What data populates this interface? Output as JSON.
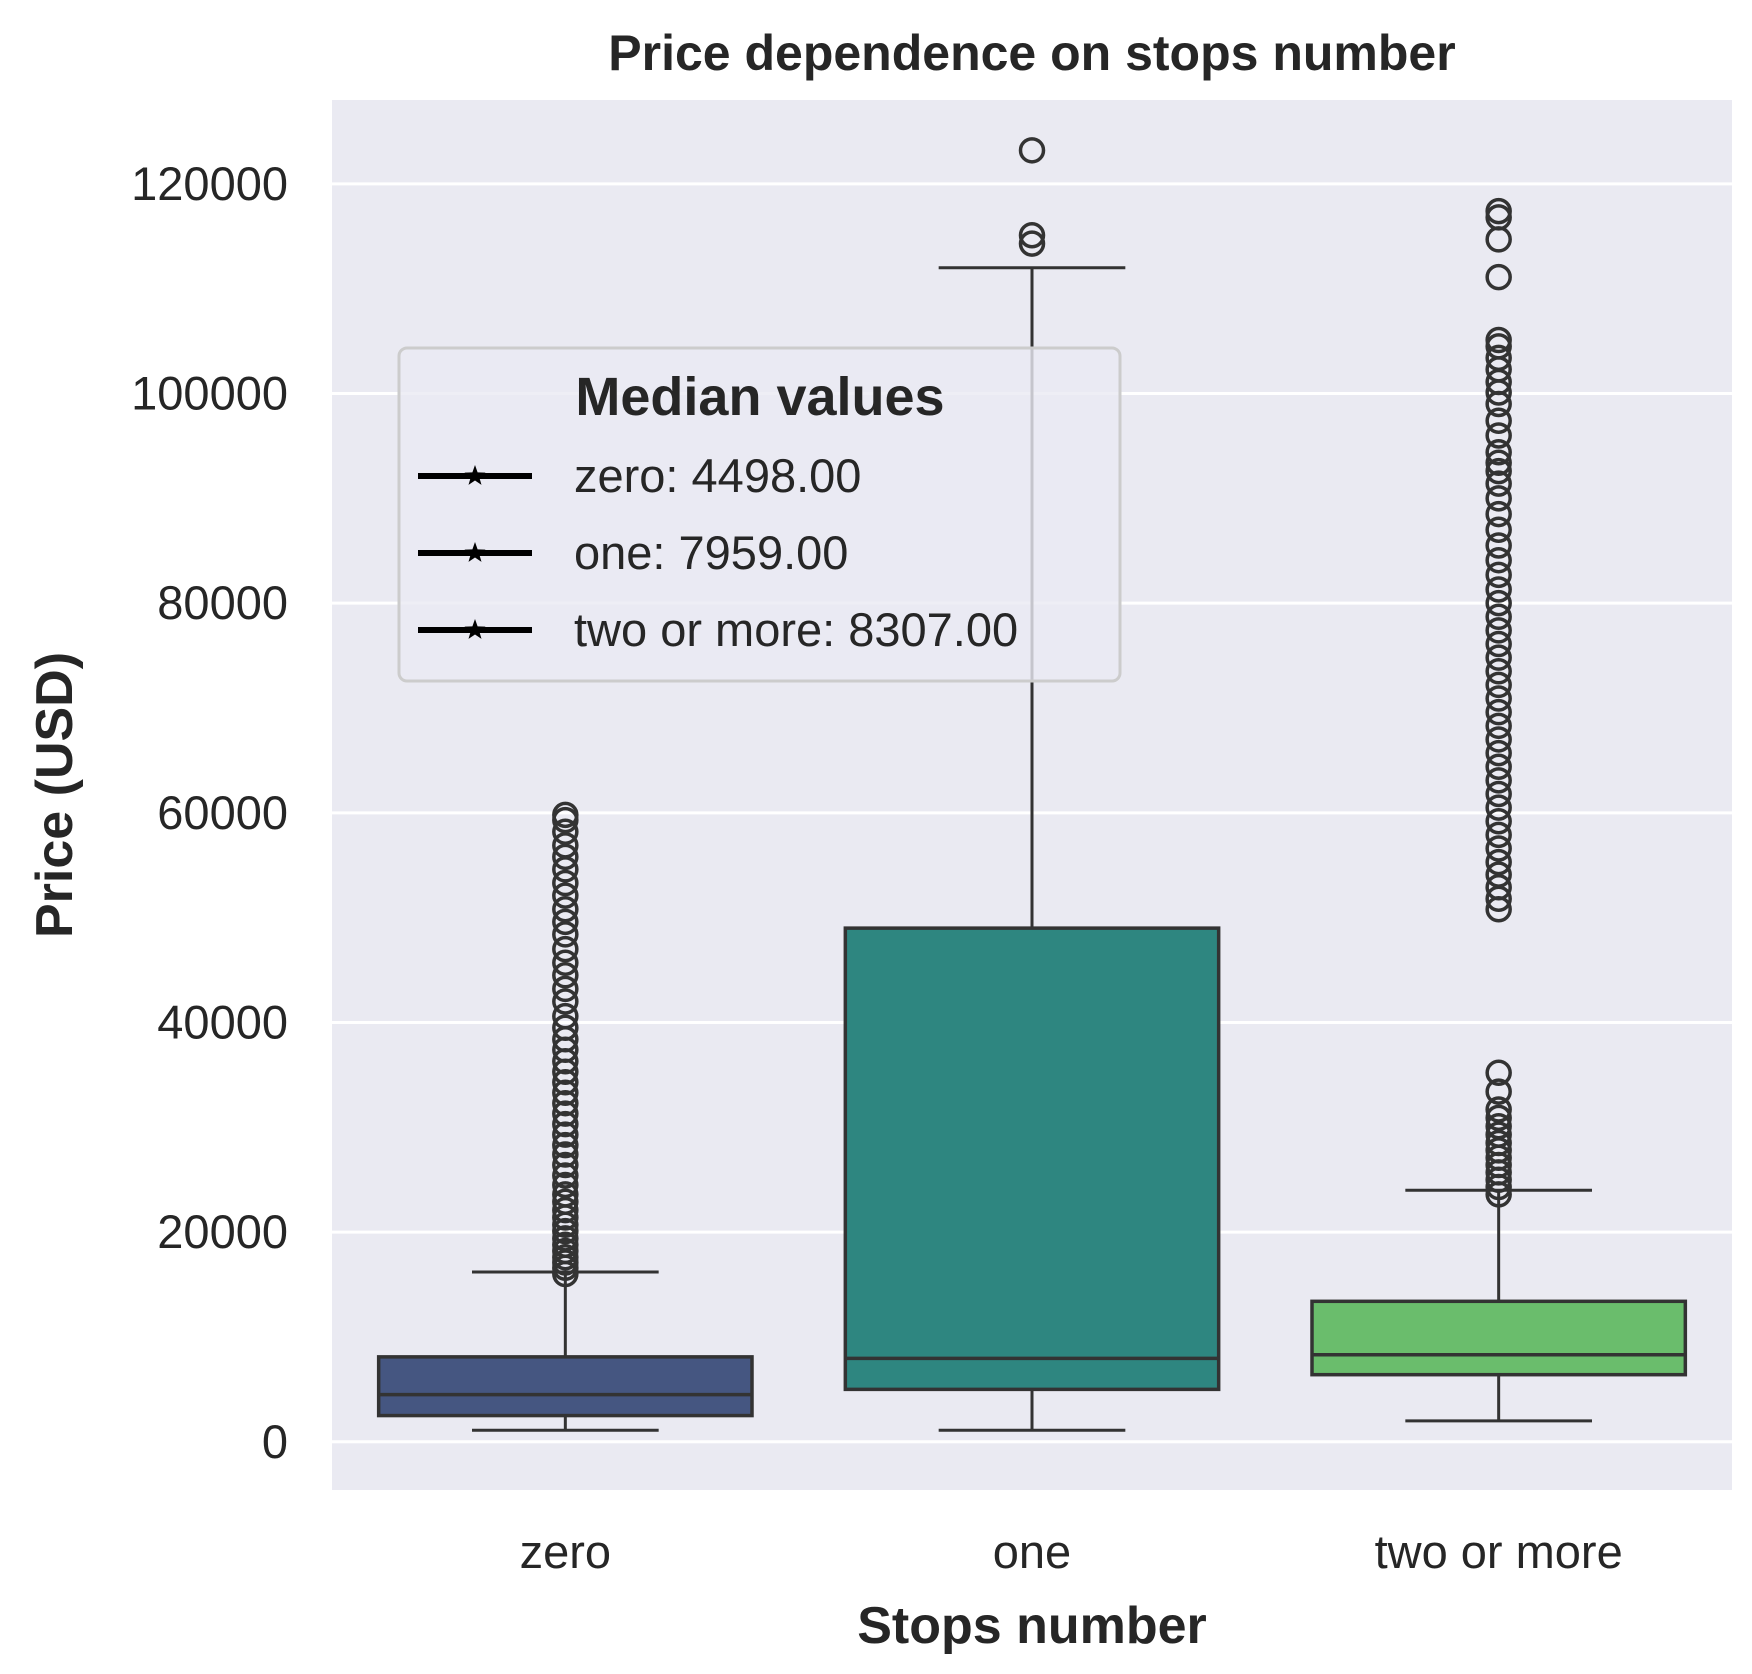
{
  "chart_data": {
    "type": "box",
    "title": "Price dependence on stops number",
    "xlabel": "Stops number",
    "ylabel": "Price (USD)",
    "ylim": [
      -4600,
      128000
    ],
    "yticks": [
      0,
      20000,
      40000,
      60000,
      80000,
      100000,
      120000
    ],
    "grid": true,
    "categories": [
      "zero",
      "one",
      "two or more"
    ],
    "colors": [
      "#455681",
      "#2e8680",
      "#6abd6c"
    ],
    "edge_color": "#333333",
    "background": "#eaeaf2",
    "boxes": [
      {
        "category": "zero",
        "whisker_low": 1100,
        "q1": 2500,
        "median": 4498,
        "q3": 8100,
        "whisker_high": 16200,
        "outliers": [
          16000,
          16600,
          17100,
          17600,
          18200,
          18800,
          19400,
          20100,
          20700,
          21400,
          22100,
          22900,
          23600,
          24500,
          25400,
          26400,
          27400,
          28300,
          29300,
          30300,
          31300,
          32300,
          33300,
          34300,
          35300,
          36300,
          37400,
          38400,
          39500,
          40600,
          42000,
          43200,
          44500,
          45700,
          47000,
          48400,
          49600,
          50800,
          52100,
          53300,
          54600,
          55800,
          56900,
          58200,
          59300,
          59800
        ]
      },
      {
        "category": "one",
        "whisker_low": 1100,
        "q1": 5000,
        "median": 7959,
        "q3": 49000,
        "whisker_high": 112000,
        "outliers": [
          114300,
          115100,
          123200
        ]
      },
      {
        "category": "two or more",
        "whisker_low": 2000,
        "q1": 6400,
        "median": 8307,
        "q3": 13400,
        "whisker_high": 24000,
        "outliers": [
          23600,
          24300,
          25000,
          25700,
          26400,
          27100,
          27800,
          28500,
          29300,
          30100,
          30900,
          31700,
          33400,
          35200,
          50800,
          51800,
          52900,
          54100,
          55300,
          56600,
          57900,
          59200,
          60500,
          61800,
          63100,
          64400,
          65700,
          67000,
          68300,
          69600,
          70900,
          72200,
          73500,
          74800,
          76100,
          77400,
          78700,
          80000,
          81300,
          82700,
          84100,
          85500,
          87000,
          88500,
          90000,
          91400,
          92600,
          93400,
          94400,
          96000,
          97400,
          99000,
          100100,
          101100,
          102300,
          103400,
          104500,
          105100,
          111100,
          114700,
          116800,
          117400
        ]
      }
    ],
    "legend": {
      "title": "Median values",
      "position": "upper-left",
      "entries": [
        "zero: 4498.00",
        "one: 7959.00",
        "two or more: 8307.00"
      ]
    }
  }
}
